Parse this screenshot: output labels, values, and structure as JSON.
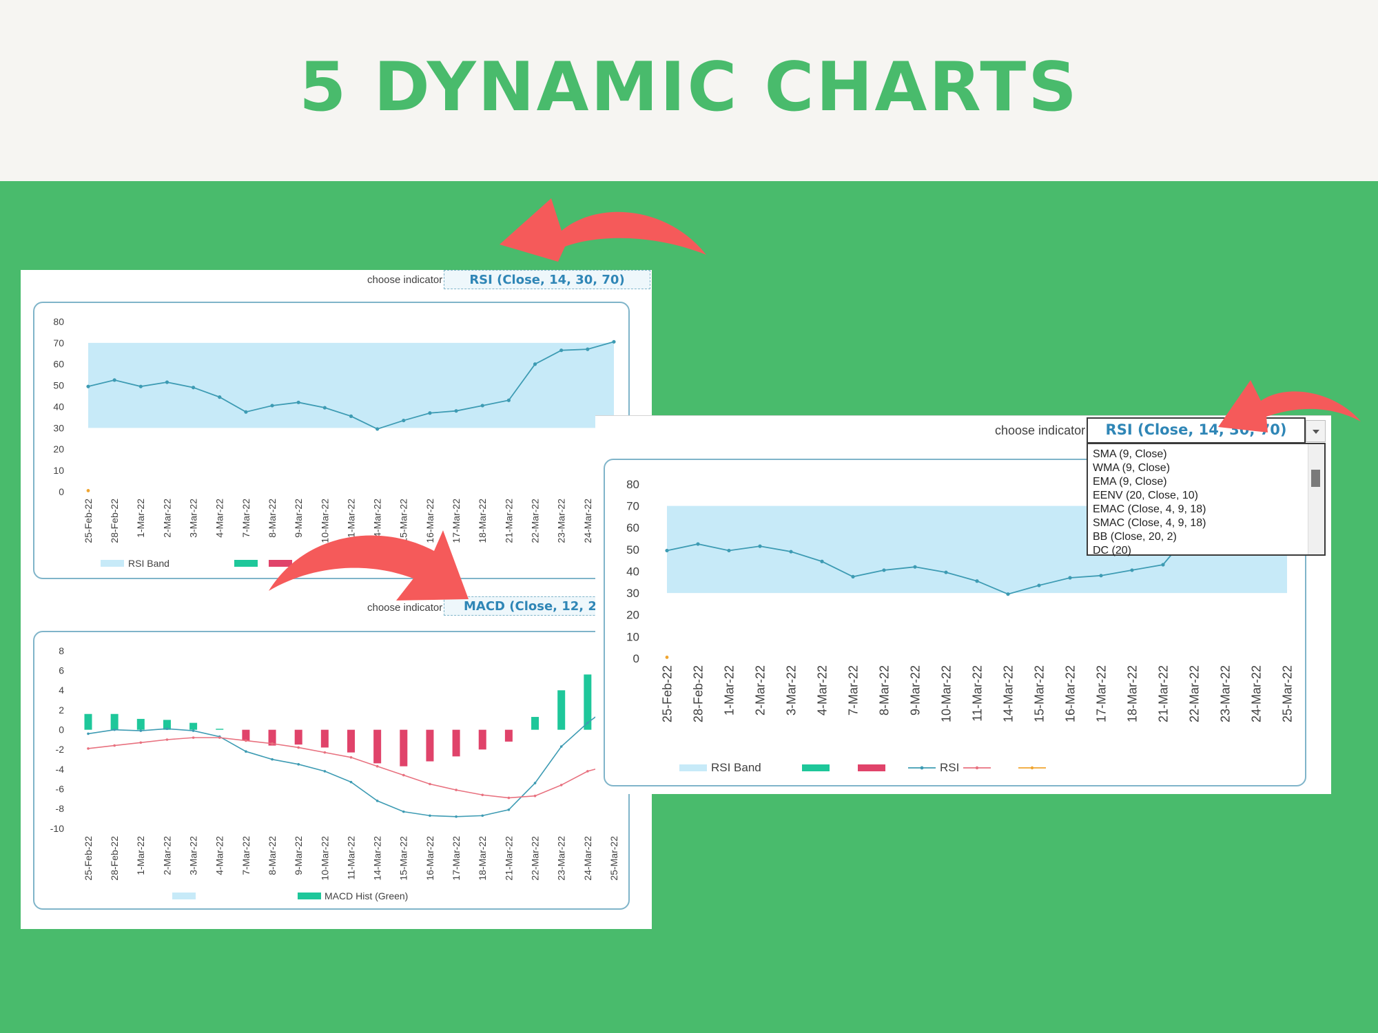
{
  "header": {
    "title": "5 DYNAMIC CHARTS"
  },
  "colors": {
    "background_green": "#49bb6c",
    "header_bg": "#f6f5f2",
    "title_green": "#49bb6c",
    "arrow_red": "#f55a5a",
    "rsi_band": "#c7eaf8",
    "rsi_line": "#3d9bb3",
    "macd_hist_green": "#1ec79a",
    "macd_hist_red": "#e0436a",
    "macd_line": "#3d9bb3",
    "signal_line": "#e8717f",
    "select_blue": "#2f86b6"
  },
  "top_left": {
    "choose_label": "choose indicator",
    "indicator": "RSI (Close, 14, 30, 70)"
  },
  "bottom_left": {
    "choose_label": "choose indicator",
    "indicator": "MACD (Close, 12, 26,"
  },
  "right": {
    "choose_label": "choose indicator",
    "indicator": "RSI (Close, 14, 30, 70)",
    "dropdown_options": [
      "SMA (9, Close)",
      "WMA (9, Close)",
      "EMA (9, Close)",
      "EENV (20, Close, 10)",
      "EMAC (Close, 4, 9, 18)",
      "SMAC (Close, 4, 9, 18)",
      "BB (Close, 20, 2)",
      "DC (20)"
    ]
  },
  "chart_data": [
    {
      "type": "line",
      "id": "rsi-left",
      "categories": [
        "25-Feb-22",
        "28-Feb-22",
        "1-Mar-22",
        "2-Mar-22",
        "3-Mar-22",
        "4-Mar-22",
        "7-Mar-22",
        "8-Mar-22",
        "9-Mar-22",
        "10-Mar-22",
        "11-Mar-22",
        "14-Mar-22",
        "15-Mar-22",
        "16-Mar-22",
        "17-Mar-22",
        "18-Mar-22",
        "21-Mar-22",
        "22-Mar-22",
        "23-Mar-22",
        "24-Mar-22",
        "25-Mar-22"
      ],
      "band": [
        30,
        70
      ],
      "series": [
        {
          "name": "RSI",
          "values": [
            49.5,
            52.5,
            49.5,
            51.5,
            49,
            44.5,
            37.5,
            40.5,
            42,
            39.5,
            35.5,
            29.5,
            33.5,
            37,
            38,
            40.5,
            43,
            60,
            66.5,
            67,
            70.5
          ]
        }
      ],
      "ylim": [
        0,
        80
      ],
      "yticks": [
        0,
        10,
        20,
        30,
        40,
        50,
        60,
        70,
        80
      ],
      "legend": [
        "RSI Band",
        "RSI"
      ],
      "marker_first": {
        "category": "25-Feb-22",
        "value": 0.5
      }
    },
    {
      "type": "bar",
      "id": "macd-left",
      "categories": [
        "25-Feb-22",
        "28-Feb-22",
        "1-Mar-22",
        "2-Mar-22",
        "3-Mar-22",
        "4-Mar-22",
        "7-Mar-22",
        "8-Mar-22",
        "9-Mar-22",
        "10-Mar-22",
        "11-Mar-22",
        "14-Mar-22",
        "15-Mar-22",
        "16-Mar-22",
        "17-Mar-22",
        "18-Mar-22",
        "21-Mar-22",
        "22-Mar-22",
        "23-Mar-22",
        "24-Mar-22",
        "25-Mar-22"
      ],
      "series": [
        {
          "name": "MACD Hist (Green)",
          "values": [
            1.6,
            1.6,
            1.1,
            1.0,
            0.7,
            0.1,
            -1.1,
            -1.6,
            -1.5,
            -1.8,
            -2.3,
            -3.4,
            -3.7,
            -3.2,
            -2.7,
            -2.0,
            -1.2,
            1.3,
            4.0,
            5.6,
            null
          ]
        },
        {
          "name": "MACD",
          "values": [
            -0.4,
            0.0,
            -0.1,
            0.1,
            -0.1,
            -0.7,
            -2.2,
            -3.0,
            -3.5,
            -4.2,
            -5.3,
            -7.2,
            -8.3,
            -8.7,
            -8.8,
            -8.7,
            -8.1,
            -5.4,
            -1.7,
            0.7,
            2.7
          ]
        },
        {
          "name": "Signal",
          "values": [
            -1.9,
            -1.6,
            -1.3,
            -1.0,
            -0.8,
            -0.8,
            -1.1,
            -1.4,
            -1.8,
            -2.3,
            -2.8,
            -3.7,
            -4.6,
            -5.5,
            -6.1,
            -6.6,
            -6.9,
            -6.7,
            -5.6,
            -4.2,
            -3.5
          ]
        }
      ],
      "ylim": [
        -10,
        8
      ],
      "yticks": [
        -10,
        -8,
        -6,
        -4,
        -2,
        0,
        2,
        4,
        6,
        8
      ],
      "legend": [
        "MACD Hist (Green)"
      ]
    },
    {
      "type": "line",
      "id": "rsi-right",
      "categories": [
        "25-Feb-22",
        "28-Feb-22",
        "1-Mar-22",
        "2-Mar-22",
        "3-Mar-22",
        "4-Mar-22",
        "7-Mar-22",
        "8-Mar-22",
        "9-Mar-22",
        "10-Mar-22",
        "11-Mar-22",
        "14-Mar-22",
        "15-Mar-22",
        "16-Mar-22",
        "17-Mar-22",
        "18-Mar-22",
        "21-Mar-22",
        "22-Mar-22",
        "23-Mar-22",
        "24-Mar-22",
        "25-Mar-22"
      ],
      "band": [
        30,
        70
      ],
      "series": [
        {
          "name": "RSI",
          "values": [
            49.5,
            52.5,
            49.5,
            51.5,
            49,
            44.5,
            37.5,
            40.5,
            42,
            39.5,
            35.5,
            29.5,
            33.5,
            37,
            38,
            40.5,
            43,
            60,
            66.5,
            67,
            70.5
          ]
        }
      ],
      "ylim": [
        0,
        80
      ],
      "yticks": [
        0,
        10,
        20,
        30,
        40,
        50,
        60,
        70,
        80
      ],
      "legend": [
        "RSI Band",
        "RSI"
      ],
      "marker_first": {
        "category": "25-Feb-22",
        "value": 0.5
      }
    }
  ]
}
